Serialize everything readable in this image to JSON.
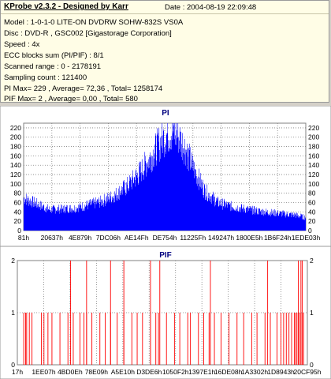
{
  "header": {
    "title": "KProbe v2.3.2 - Designed by Karr",
    "date": "Date : 2004-08-19 22:09:48",
    "lines": [
      "Model : 1-0-1-0 LITE-ON DVDRW SOHW-832S  VS0A",
      "Disc : DVD-R , GSC002 [Gigastorage Corporation]",
      "Speed : 4x",
      "ECC blocks sum (PI/PIF) : 8/1",
      "Scanned range : 0 - 2178191",
      "Sampling count : 121400",
      "PI Max= 229 , Average= 72,36 , Total= 1258174",
      "PIF Max= 2 , Average= 0,00 , Total= 580"
    ]
  },
  "chart_data": [
    {
      "type": "area",
      "title": "PI",
      "ylim": [
        0,
        230
      ],
      "yticks": [
        0,
        20,
        40,
        60,
        80,
        100,
        120,
        140,
        160,
        180,
        200,
        220
      ],
      "xticks": [
        "81h",
        "20637h",
        "4E879h",
        "7DC06h",
        "AE14Fh",
        "DE754h",
        "11225Fh",
        "149247h",
        "1800E5h",
        "1B6F24h",
        "1EDE03h"
      ],
      "xlim": [
        0,
        2178191
      ],
      "grid": true,
      "color": "#0000ff",
      "envelope": {
        "x": [
          0,
          200000,
          400000,
          600000,
          700000,
          800000,
          900000,
          1000000,
          1050000,
          1100000,
          1150000,
          1200000,
          1250000,
          1300000,
          1400000,
          1500000,
          1600000,
          1800000,
          2000000,
          2100000,
          2178191
        ],
        "y": [
          70,
          45,
          48,
          62,
          75,
          95,
          125,
          165,
          188,
          205,
          212,
          200,
          175,
          140,
          85,
          60,
          52,
          42,
          36,
          33,
          28
        ]
      }
    },
    {
      "type": "bar",
      "title": "PIF",
      "ylim": [
        0,
        2
      ],
      "yticks": [
        0,
        1,
        2
      ],
      "xticks": [
        "17h",
        "1EE07h",
        "4BD0Eh",
        "78E09h",
        "A5E10h",
        "D3DE6h",
        "1050F2h",
        "1397E1h",
        "16DE08h",
        "1A3302h",
        "1D8943h",
        "20CF95h"
      ],
      "xlim": [
        0,
        2178191
      ],
      "grid": true,
      "color": "#ff0000",
      "spikes_value1": [
        48000,
        62000,
        70000,
        90000,
        110000,
        180000,
        200000,
        230000,
        260000,
        320000,
        380000,
        420000,
        470000,
        500000,
        520000,
        560000,
        620000,
        660000,
        700000,
        750000,
        800000,
        860000,
        900000,
        940000,
        1000000,
        1040000,
        1060000,
        1120000,
        1180000,
        1220000,
        1280000,
        1300000,
        1360000,
        1400000,
        1440000,
        1480000,
        1530000,
        1590000,
        1650000,
        1700000,
        1760000,
        1800000,
        1860000,
        1900000,
        1950000,
        1980000,
        2000000,
        2020000,
        2040000,
        2060000,
        2080000,
        2090000,
        2100000,
        2110000,
        2120000,
        2130000,
        2140000,
        2150000
      ],
      "spikes_value2": [
        400000,
        520000,
        700000,
        800000,
        1000000,
        1070000,
        1450000,
        1880000,
        2110000,
        2130000,
        2140000
      ]
    }
  ]
}
